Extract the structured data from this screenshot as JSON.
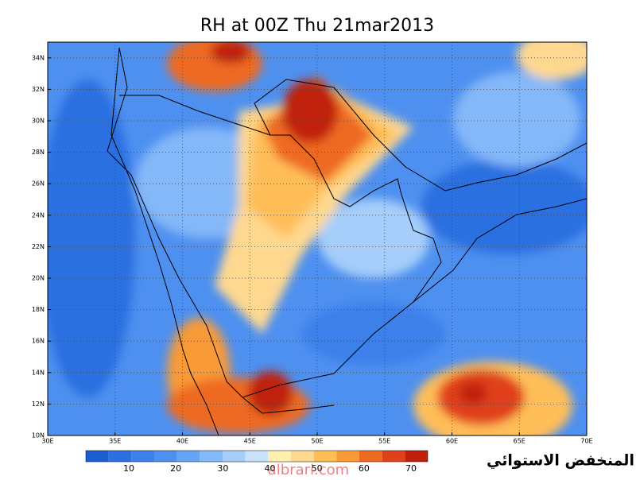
{
  "map": {
    "title": "RH at 00Z Thu 21mar2013",
    "xlim": [
      30,
      70
    ],
    "ylim": [
      10,
      35
    ],
    "xticks": [
      {
        "value": 30,
        "label": "30E"
      },
      {
        "value": 35,
        "label": "35E"
      },
      {
        "value": 40,
        "label": "40E"
      },
      {
        "value": 45,
        "label": "45E"
      },
      {
        "value": 50,
        "label": "50E"
      },
      {
        "value": 55,
        "label": "55E"
      },
      {
        "value": 60,
        "label": "60E"
      },
      {
        "value": 65,
        "label": "65E"
      },
      {
        "value": 70,
        "label": "70E"
      }
    ],
    "yticks": [
      {
        "value": 10,
        "label": "10N"
      },
      {
        "value": 12,
        "label": "12N"
      },
      {
        "value": 14,
        "label": "14N"
      },
      {
        "value": 16,
        "label": "16N"
      },
      {
        "value": 18,
        "label": "18N"
      },
      {
        "value": 20,
        "label": "20N"
      },
      {
        "value": 22,
        "label": "22N"
      },
      {
        "value": 24,
        "label": "24N"
      },
      {
        "value": 26,
        "label": "26N"
      },
      {
        "value": 28,
        "label": "28N"
      },
      {
        "value": 30,
        "label": "30N"
      },
      {
        "value": 32,
        "label": "32N"
      },
      {
        "value": 34,
        "label": "34N"
      }
    ]
  },
  "colorbar": {
    "labels": [
      10,
      20,
      30,
      40,
      50,
      60,
      70
    ],
    "colors": [
      "#1a5fd0",
      "#2a70e0",
      "#3c80ea",
      "#4e90f0",
      "#66a4f5",
      "#84b8f8",
      "#a6cefa",
      "#c8e2fb",
      "#fff0b0",
      "#ffd890",
      "#ffbe58",
      "#f89a38",
      "#ee6a22",
      "#e0401a",
      "#c0200c"
    ]
  },
  "caption": "المنخفض الاستوائي",
  "watermark": "albrari.com"
}
